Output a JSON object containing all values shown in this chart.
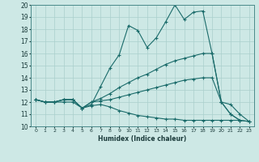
{
  "xlabel": "Humidex (Indice chaleur)",
  "bg_color": "#cde8e5",
  "grid_color": "#aacfcc",
  "line_color": "#1a6b6a",
  "xlim": [
    -0.5,
    23.5
  ],
  "ylim": [
    10,
    20
  ],
  "xticks": [
    0,
    1,
    2,
    3,
    4,
    5,
    6,
    7,
    8,
    9,
    10,
    11,
    12,
    13,
    14,
    15,
    16,
    17,
    18,
    19,
    20,
    21,
    22,
    23
  ],
  "yticks": [
    10,
    11,
    12,
    13,
    14,
    15,
    16,
    17,
    18,
    19,
    20
  ],
  "lines": [
    {
      "x": [
        0,
        1,
        2,
        3,
        4,
        5,
        6,
        7,
        8,
        9,
        10,
        11,
        12,
        13,
        14,
        15,
        16,
        17,
        18,
        19,
        20,
        21,
        22
      ],
      "y": [
        12.2,
        12.0,
        12.0,
        12.2,
        12.2,
        11.5,
        11.8,
        13.3,
        14.8,
        15.9,
        18.3,
        17.9,
        16.5,
        17.3,
        18.6,
        20.0,
        18.8,
        19.4,
        19.5,
        16.0,
        12.0,
        11.0,
        10.5
      ]
    },
    {
      "x": [
        0,
        1,
        2,
        3,
        4,
        5,
        6,
        7,
        8,
        9,
        10,
        11,
        12,
        13,
        14,
        15,
        16,
        17,
        18,
        19,
        20,
        21,
        22,
        23
      ],
      "y": [
        12.2,
        12.0,
        12.0,
        12.2,
        12.2,
        11.5,
        12.0,
        12.3,
        12.7,
        13.2,
        13.6,
        14.0,
        14.3,
        14.7,
        15.1,
        15.4,
        15.6,
        15.8,
        16.0,
        16.0,
        12.0,
        11.0,
        10.5,
        10.4
      ]
    },
    {
      "x": [
        0,
        1,
        2,
        3,
        4,
        5,
        6,
        7,
        8,
        9,
        10,
        11,
        12,
        13,
        14,
        15,
        16,
        17,
        18,
        19,
        20,
        21,
        22,
        23
      ],
      "y": [
        12.2,
        12.0,
        12.0,
        12.2,
        12.2,
        11.5,
        12.0,
        12.1,
        12.2,
        12.4,
        12.6,
        12.8,
        13.0,
        13.2,
        13.4,
        13.6,
        13.8,
        13.9,
        14.0,
        14.0,
        12.0,
        11.8,
        11.0,
        10.4
      ]
    },
    {
      "x": [
        0,
        1,
        2,
        3,
        4,
        5,
        6,
        7,
        8,
        9,
        10,
        11,
        12,
        13,
        14,
        15,
        16,
        17,
        18,
        19,
        20,
        21,
        22,
        23
      ],
      "y": [
        12.2,
        12.0,
        12.0,
        12.0,
        12.0,
        11.5,
        11.7,
        11.8,
        11.6,
        11.3,
        11.1,
        10.9,
        10.8,
        10.7,
        10.6,
        10.6,
        10.5,
        10.5,
        10.5,
        10.5,
        10.5,
        10.5,
        10.5,
        10.4
      ]
    }
  ]
}
